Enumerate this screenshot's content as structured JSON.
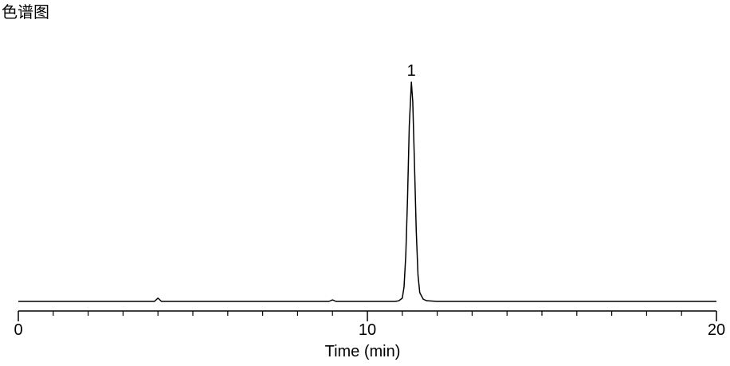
{
  "chart_data": {
    "type": "line",
    "title": "色谱图",
    "xlabel": "Time (min)",
    "x": [
      0,
      1,
      2,
      3,
      3.9,
      4.0,
      4.1,
      5,
      6,
      7,
      8,
      8.9,
      9.0,
      9.1,
      10,
      10.8,
      10.9,
      11.0,
      11.05,
      11.1,
      11.15,
      11.2,
      11.26,
      11.3,
      11.35,
      11.4,
      11.45,
      11.5,
      11.6,
      11.7,
      12,
      14,
      16,
      18,
      20
    ],
    "values": [
      0,
      0,
      0,
      0,
      0,
      1.5,
      0,
      0,
      0,
      0,
      0,
      0,
      0.7,
      0,
      0,
      0,
      0.3,
      1.5,
      6.6,
      21,
      47,
      80,
      100,
      91,
      62,
      32,
      12,
      4,
      1,
      0.3,
      0,
      0,
      0,
      0,
      0
    ],
    "color": "#000000",
    "xlim": [
      0,
      20
    ],
    "ylim": [
      0,
      100
    ],
    "xticks": [
      0,
      10,
      20
    ],
    "minor_xticks": [
      1,
      2,
      3,
      4,
      5,
      6,
      7,
      8,
      9,
      11,
      12,
      13,
      14,
      15,
      16,
      17,
      18,
      19
    ],
    "peak_labels": [
      {
        "x": 11.26,
        "label": "1"
      }
    ]
  }
}
